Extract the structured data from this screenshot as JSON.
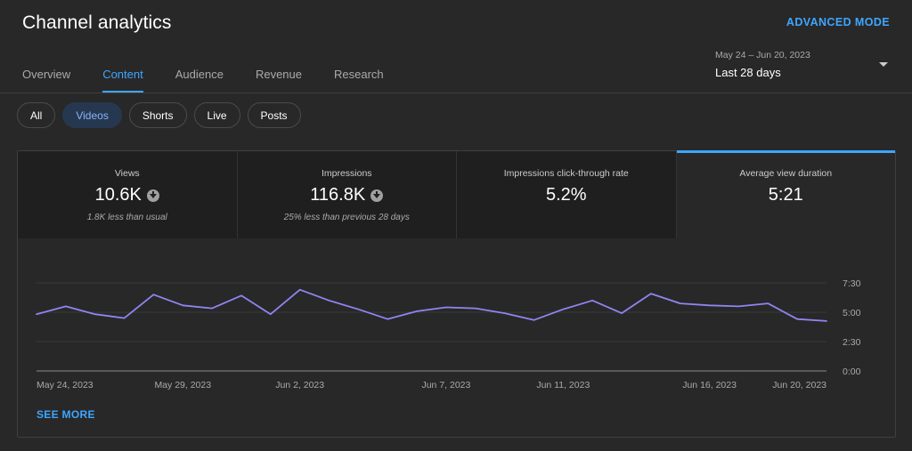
{
  "header": {
    "title": "Channel analytics",
    "advanced_mode": "ADVANCED MODE"
  },
  "tabs": [
    {
      "label": "Overview"
    },
    {
      "label": "Content"
    },
    {
      "label": "Audience"
    },
    {
      "label": "Revenue"
    },
    {
      "label": "Research"
    }
  ],
  "active_tab": "Content",
  "date_picker": {
    "range": "May 24 – Jun 20, 2023",
    "label": "Last 28 days"
  },
  "chips": [
    {
      "label": "All"
    },
    {
      "label": "Videos"
    },
    {
      "label": "Shorts"
    },
    {
      "label": "Live"
    },
    {
      "label": "Posts"
    }
  ],
  "active_chip": "Videos",
  "metrics": [
    {
      "label": "Views",
      "value": "10.6K",
      "trend": "down",
      "sub": "1.8K less than usual"
    },
    {
      "label": "Impressions",
      "value": "116.8K",
      "trend": "down",
      "sub": "25% less than previous 28 days"
    },
    {
      "label": "Impressions click-through rate",
      "value": "5.2%",
      "trend": "",
      "sub": ""
    },
    {
      "label": "Average view duration",
      "value": "5:21",
      "trend": "",
      "sub": ""
    }
  ],
  "selected_metric": "Average view duration",
  "colors": {
    "accent": "#3ea6ff",
    "line": "#8f85f2"
  },
  "see_more": "SEE MORE",
  "chart_data": {
    "type": "line",
    "ylabel": "",
    "xlabel": "",
    "y_unit": "seconds",
    "ylim": [
      0,
      450
    ],
    "y_ticks": [
      {
        "value": 450,
        "label": "7:30"
      },
      {
        "value": 300,
        "label": "5:00"
      },
      {
        "value": 150,
        "label": "2:30"
      },
      {
        "value": 0,
        "label": "0:00"
      }
    ],
    "x_ticks": [
      {
        "index": 0,
        "label": "May 24, 2023"
      },
      {
        "index": 5,
        "label": "May 29, 2023"
      },
      {
        "index": 9,
        "label": "Jun 2, 2023"
      },
      {
        "index": 14,
        "label": "Jun 7, 2023"
      },
      {
        "index": 18,
        "label": "Jun 11, 2023"
      },
      {
        "index": 23,
        "label": "Jun 16, 2023"
      },
      {
        "index": 27,
        "label": "Jun 20, 2023"
      }
    ],
    "series": [
      {
        "values": [
          290,
          330,
          290,
          270,
          390,
          335,
          320,
          385,
          290,
          415,
          360,
          315,
          265,
          305,
          325,
          320,
          295,
          260,
          315,
          360,
          295,
          395,
          345,
          335,
          330,
          345,
          265,
          255
        ]
      }
    ]
  }
}
